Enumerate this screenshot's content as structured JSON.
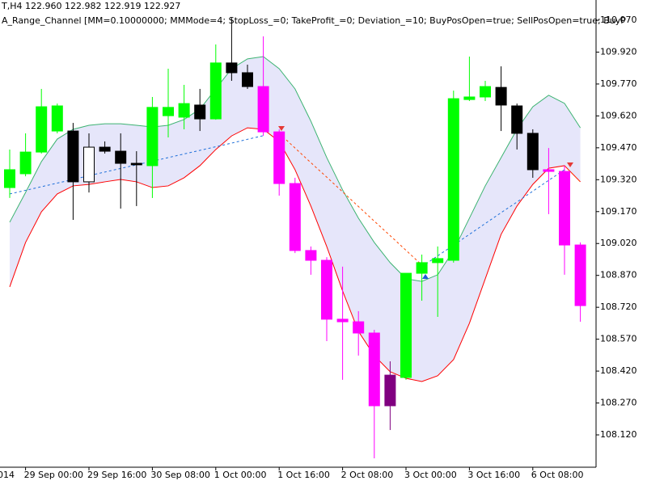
{
  "chart_data": {
    "type": "candlestick",
    "header": "T,H4  122.960 122.982 122.919 122.927",
    "indicator": "A_Range_Channel [MM=0.10000000; MMMode=4; StopLoss_=0; TakeProfit_=0; Deviation_=10; BuyPosOpen=true; SellPosOpen=true; BuyP",
    "x_cut_label": "014",
    "categories": [
      null,
      "29 Sep 00:00",
      null,
      null,
      null,
      "29 Sep 16:00",
      null,
      null,
      null,
      "30 Sep 08:00",
      null,
      null,
      null,
      "1 Oct 00:00",
      null,
      null,
      null,
      "1 Oct 16:00",
      null,
      null,
      null,
      "2 Oct 08:00",
      null,
      null,
      null,
      "3 Oct 00:00",
      null,
      null,
      null,
      "3 Oct 16:00",
      null,
      null,
      null,
      "6 Oct 08:00",
      null,
      null,
      null
    ],
    "candles": {
      "open": [
        109.283,
        109.348,
        109.45,
        109.549,
        109.549,
        109.31,
        109.473,
        109.454,
        109.397,
        109.386,
        109.621,
        109.614,
        109.671,
        109.606,
        109.869,
        109.823,
        109.758,
        109.545,
        109.302,
        108.987,
        108.941,
        108.664,
        108.652,
        108.599,
        108.401,
        108.39,
        108.88,
        108.93,
        108.941,
        109.697,
        109.709,
        109.754,
        109.667,
        109.538,
        109.367,
        109.359,
        109.013
      ],
      "close": [
        109.367,
        109.45,
        109.663,
        109.667,
        109.31,
        109.473,
        109.454,
        109.397,
        109.39,
        109.66,
        109.66,
        109.678,
        109.606,
        109.869,
        109.823,
        109.758,
        109.545,
        109.302,
        108.987,
        108.941,
        108.664,
        108.652,
        108.599,
        108.257,
        108.257,
        108.88,
        108.93,
        108.949,
        109.701,
        109.709,
        109.758,
        109.671,
        109.538,
        109.367,
        109.359,
        109.013,
        108.728
      ],
      "high": [
        109.462,
        109.538,
        109.747,
        109.678,
        109.587,
        109.538,
        109.5,
        109.538,
        109.454,
        109.709,
        109.842,
        109.766,
        109.747,
        109.956,
        110.081,
        109.861,
        109.994,
        109.557,
        109.329,
        109.006,
        108.956,
        108.911,
        108.702,
        108.614,
        108.466,
        108.88,
        108.968,
        109.006,
        109.739,
        109.899,
        109.785,
        109.853,
        109.678,
        109.557,
        109.469,
        109.386,
        109.025
      ],
      "low": [
        109.234,
        109.336,
        109.443,
        109.538,
        109.131,
        109.26,
        109.443,
        109.184,
        109.196,
        109.234,
        109.519,
        109.557,
        109.549,
        109.602,
        109.785,
        109.747,
        109.526,
        109.245,
        108.975,
        108.873,
        108.561,
        108.379,
        108.493,
        108.01,
        108.143,
        108.379,
        108.751,
        108.675,
        108.93,
        109.69,
        109.69,
        109.549,
        109.462,
        109.329,
        109.158,
        108.873,
        108.652
      ],
      "colors": [
        "#00ff00",
        "#00ff00",
        "#00ff00",
        "#00ff00",
        "#000000",
        "#ffffff",
        "#000000",
        "#000000",
        "#000000",
        "#00ff00",
        "#00ff00",
        "#00ff00",
        "#000000",
        "#00ff00",
        "#000000",
        "#000000",
        "#ff00ff",
        "#ff00ff",
        "#ff00ff",
        "#ff00ff",
        "#ff00ff",
        "#ff00ff",
        "#ff00ff",
        "#ff00ff",
        "#800080",
        "#00ff00",
        "#00ff00",
        "#00ff00",
        "#00ff00",
        "#00ff00",
        "#00ff00",
        "#000000",
        "#000000",
        "#000000",
        "#ff00ff",
        "#ff00ff",
        "#ff00ff"
      ]
    },
    "channel_fill": "#e6e6fa",
    "lines": [
      {
        "color": "#3cb371",
        "dashed": false,
        "values": [
          109.12,
          109.26,
          109.405,
          109.511,
          109.557,
          109.576,
          109.583,
          109.583,
          109.576,
          109.568,
          109.576,
          109.603,
          109.652,
          109.747,
          109.842,
          109.888,
          109.899,
          109.842,
          109.747,
          109.595,
          109.424,
          109.272,
          109.139,
          109.025,
          108.93,
          108.854,
          108.842,
          108.873,
          108.987,
          109.139,
          109.291,
          109.424,
          109.557,
          109.663,
          109.717,
          109.679,
          109.564
        ]
      },
      {
        "color": "#ff0000",
        "dashed": false,
        "values": [
          108.816,
          109.025,
          109.169,
          109.253,
          109.291,
          109.298,
          109.31,
          109.321,
          109.31,
          109.283,
          109.291,
          109.329,
          109.386,
          109.462,
          109.526,
          109.564,
          109.557,
          109.5,
          109.367,
          109.196,
          109.006,
          108.797,
          108.607,
          108.493,
          108.417,
          108.386,
          108.371,
          108.398,
          108.474,
          108.645,
          108.854,
          109.063,
          109.196,
          109.298,
          109.374,
          109.386,
          109.31
        ]
      },
      {
        "color": "#1e6fd9",
        "dashed": true,
        "values": [
          109.253,
          109.27,
          109.287,
          109.304,
          109.321,
          109.339,
          109.356,
          109.373,
          109.39,
          109.407,
          109.424,
          109.441,
          109.458,
          109.475,
          109.492,
          109.51,
          109.527,
          null,
          null,
          null,
          null,
          null,
          null,
          null,
          null,
          null,
          108.911,
          108.962,
          109.012,
          109.063,
          109.114,
          109.165,
          109.215,
          109.266,
          109.317,
          109.367,
          null
        ]
      },
      {
        "color": "#ff4500",
        "dashed": true,
        "values": [
          null,
          null,
          null,
          null,
          null,
          null,
          null,
          null,
          null,
          null,
          null,
          null,
          null,
          null,
          null,
          null,
          null,
          109.538,
          109.469,
          109.4,
          109.332,
          109.263,
          109.194,
          109.125,
          109.057,
          108.988,
          108.919,
          null,
          null,
          null,
          null,
          null,
          null,
          null,
          null,
          109.386,
          109.31
        ]
      }
    ],
    "ylim": [
      107.968,
      110.165
    ],
    "yticks": [
      {
        "value": 110.07,
        "label": "110.070"
      },
      {
        "value": 109.92,
        "label": "109.920"
      },
      {
        "value": 109.77,
        "label": "109.770"
      },
      {
        "value": 109.62,
        "label": "109.620"
      },
      {
        "value": 109.47,
        "label": "109.470"
      },
      {
        "value": 109.32,
        "label": "109.320"
      },
      {
        "value": 109.17,
        "label": "109.170"
      },
      {
        "value": 109.02,
        "label": "109.020"
      },
      {
        "value": 108.87,
        "label": "108.870"
      },
      {
        "value": 108.72,
        "label": "108.720"
      },
      {
        "value": 108.57,
        "label": "108.570"
      },
      {
        "value": 108.42,
        "label": "108.420"
      },
      {
        "value": 108.27,
        "label": "108.270"
      },
      {
        "value": 108.12,
        "label": "108.120"
      }
    ]
  }
}
